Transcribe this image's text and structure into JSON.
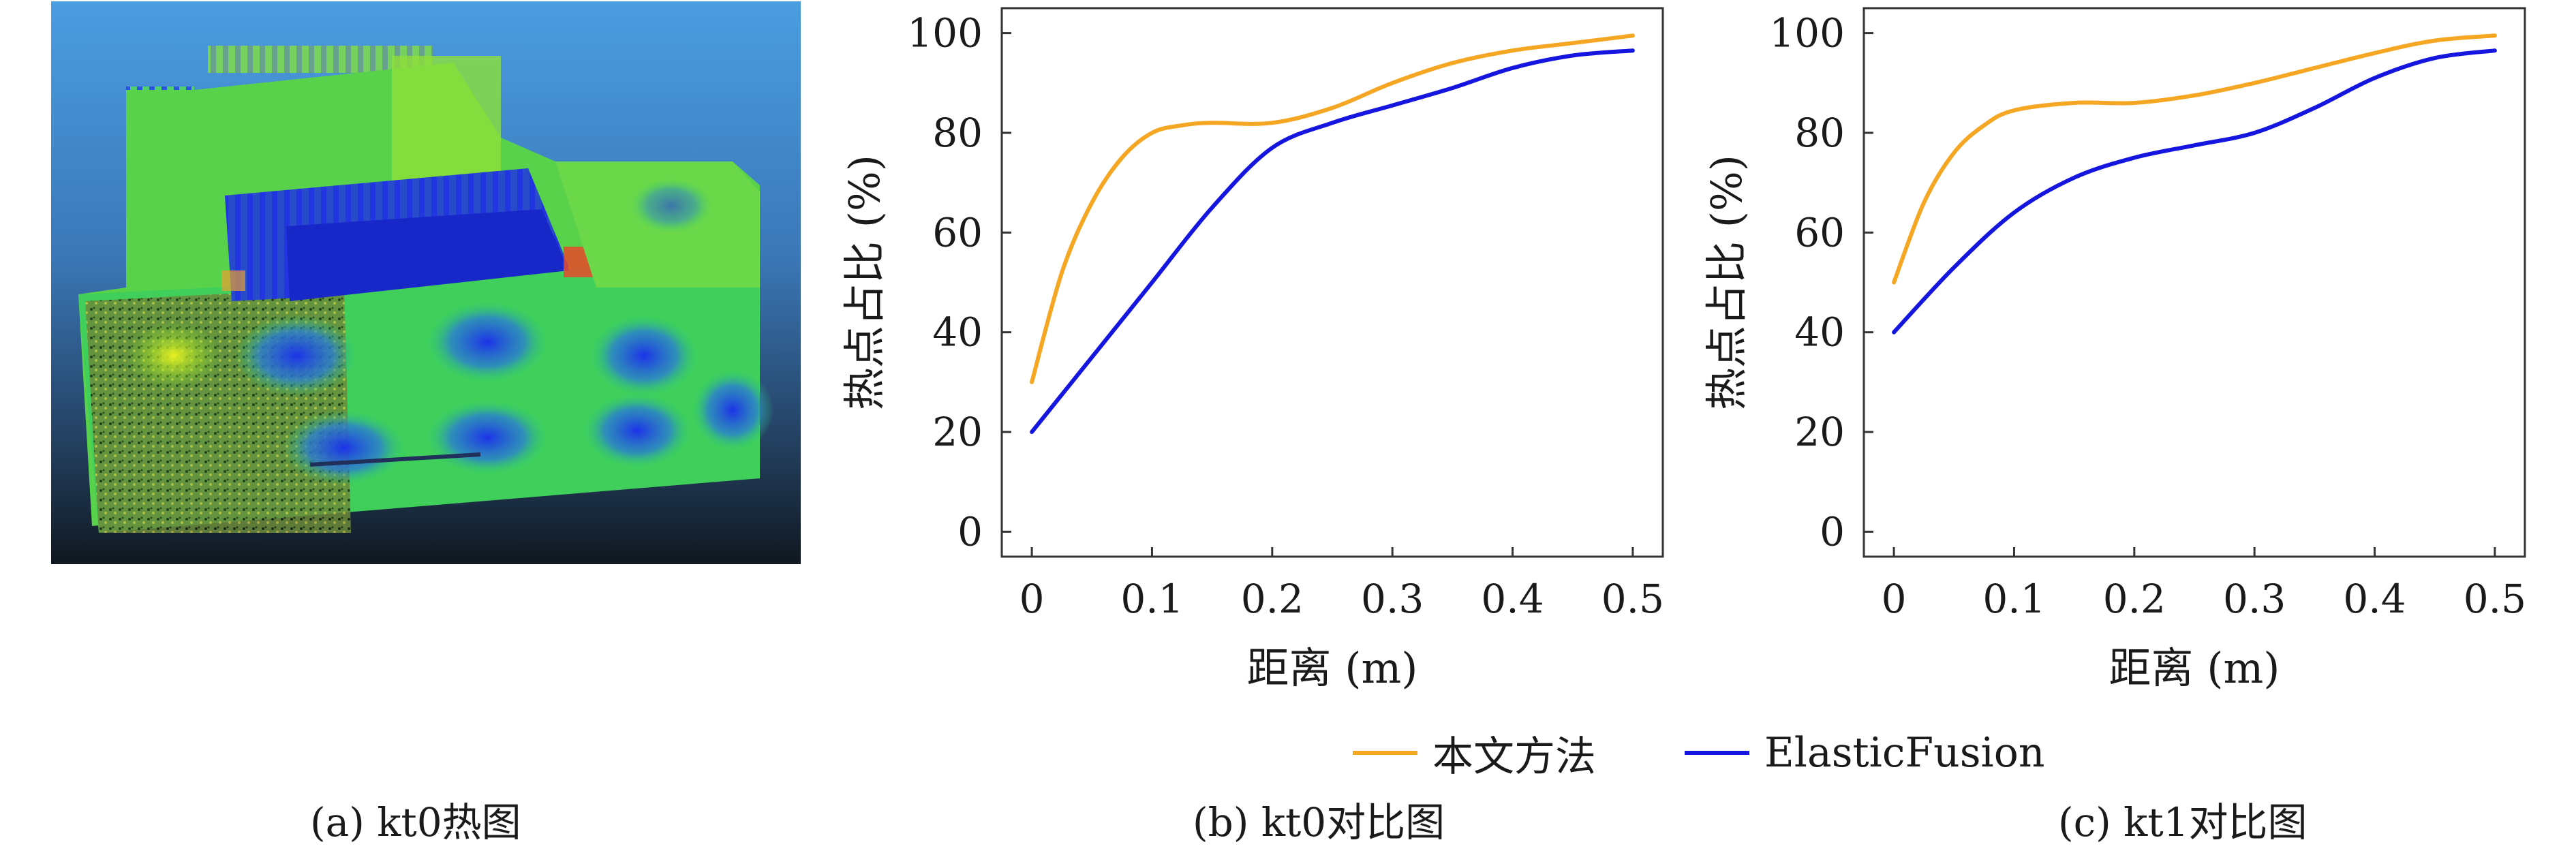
{
  "captions": {
    "a": "(a) kt0热图",
    "b": "(b) kt0对比图",
    "c": "(c) kt1对比图"
  },
  "legend": [
    {
      "label": "本文方法",
      "color": "#f5a623"
    },
    {
      "label": "ElasticFusion",
      "color": "#1515e0"
    }
  ],
  "chart_data": [
    {
      "type": "line",
      "xlabel": "距离 (m)",
      "ylabel": "热点占比 (%)",
      "xlim": [
        -0.025,
        0.525
      ],
      "ylim": [
        -5,
        105
      ],
      "xticks": [
        0,
        0.1,
        0.2,
        0.3,
        0.4,
        0.5
      ],
      "xtick_labels": [
        "0",
        "0.1",
        "0.2",
        "0.3",
        "0.4",
        "0.5"
      ],
      "yticks": [
        0,
        20,
        40,
        60,
        80,
        100
      ],
      "ytick_labels": [
        "0",
        "20",
        "40",
        "60",
        "80",
        "100"
      ],
      "grid": false,
      "series": [
        {
          "name": "本文方法",
          "color": "#f5a623",
          "x": [
            0,
            0.025,
            0.05,
            0.075,
            0.1,
            0.125,
            0.15,
            0.2,
            0.25,
            0.3,
            0.35,
            0.4,
            0.45,
            0.5
          ],
          "y": [
            30,
            52,
            66,
            75,
            80,
            81.5,
            82,
            82,
            85,
            90,
            94,
            96.5,
            98,
            99.5
          ]
        },
        {
          "name": "ElasticFusion",
          "color": "#1515e0",
          "x": [
            0,
            0.05,
            0.1,
            0.15,
            0.2,
            0.25,
            0.3,
            0.35,
            0.4,
            0.45,
            0.5
          ],
          "y": [
            20,
            35,
            50,
            65,
            77,
            82,
            85.5,
            89,
            93,
            95.5,
            96.5
          ]
        }
      ]
    },
    {
      "type": "line",
      "xlabel": "距离 (m)",
      "ylabel": "热点占比 (%)",
      "xlim": [
        -0.025,
        0.525
      ],
      "ylim": [
        -5,
        105
      ],
      "xticks": [
        0,
        0.1,
        0.2,
        0.3,
        0.4,
        0.5
      ],
      "xtick_labels": [
        "0",
        "0.1",
        "0.2",
        "0.3",
        "0.4",
        "0.5"
      ],
      "yticks": [
        0,
        20,
        40,
        60,
        80,
        100
      ],
      "ytick_labels": [
        "0",
        "20",
        "40",
        "60",
        "80",
        "100"
      ],
      "grid": false,
      "series": [
        {
          "name": "本文方法",
          "color": "#f5a623",
          "x": [
            0,
            0.025,
            0.05,
            0.075,
            0.1,
            0.15,
            0.2,
            0.25,
            0.3,
            0.35,
            0.4,
            0.45,
            0.5
          ],
          "y": [
            50,
            66,
            76,
            81.5,
            84.5,
            86,
            86,
            87.5,
            90,
            93,
            96,
            98.5,
            99.5
          ]
        },
        {
          "name": "ElasticFusion",
          "color": "#1515e0",
          "x": [
            0,
            0.05,
            0.1,
            0.15,
            0.2,
            0.25,
            0.3,
            0.35,
            0.4,
            0.45,
            0.5
          ],
          "y": [
            40,
            53,
            64,
            71,
            75,
            77.5,
            80,
            85,
            91,
            95,
            96.5
          ]
        }
      ]
    }
  ]
}
